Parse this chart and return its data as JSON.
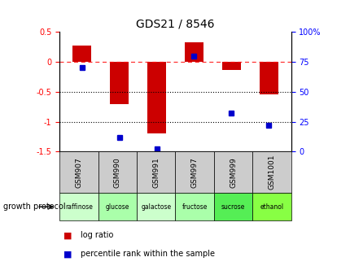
{
  "title": "GDS21 / 8546",
  "samples": [
    "GSM907",
    "GSM990",
    "GSM991",
    "GSM997",
    "GSM999",
    "GSM1001"
  ],
  "protocols": [
    "raffinose",
    "glucose",
    "galactose",
    "fructose",
    "sucrose",
    "ethanol"
  ],
  "log_ratio": [
    0.27,
    -0.7,
    -1.2,
    0.33,
    -0.13,
    -0.55
  ],
  "percentile_rank": [
    70,
    12,
    2,
    80,
    32,
    22
  ],
  "ylim_left": [
    -1.5,
    0.5
  ],
  "ylim_right": [
    0,
    100
  ],
  "bar_color": "#cc0000",
  "dot_color": "#0000cc",
  "protocol_colors": [
    "#ccffcc",
    "#aaffaa",
    "#ccffcc",
    "#aaffaa",
    "#55ee55",
    "#88ff44"
  ],
  "sample_bg_color": "#cccccc",
  "dotted_lines": [
    -0.5,
    -1.0
  ],
  "growth_protocol_label": "growth protocol",
  "legend_items": [
    "log ratio",
    "percentile rank within the sample"
  ]
}
